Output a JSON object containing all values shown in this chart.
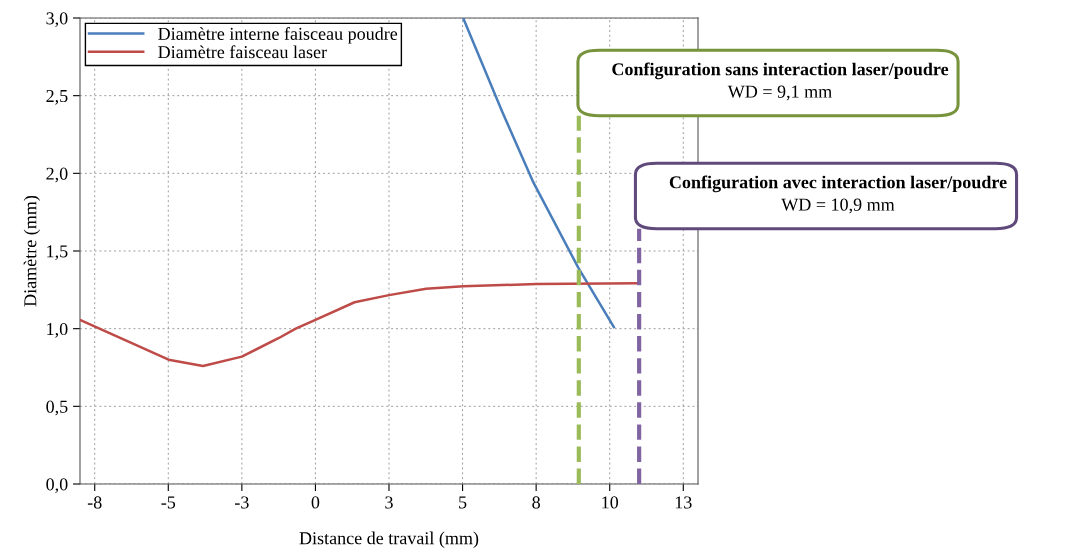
{
  "chart_data": {
    "type": "line",
    "xlabel": "Distance de travail (mm)",
    "ylabel": "Diamètre (mm)",
    "xlim": [
      -8,
      13
    ],
    "ylim": [
      0,
      3
    ],
    "xticks": [
      {
        "value": -7.5,
        "label": "-8"
      },
      {
        "value": -5,
        "label": "-5"
      },
      {
        "value": -2.5,
        "label": "-3"
      },
      {
        "value": 0,
        "label": "0"
      },
      {
        "value": 2.5,
        "label": "3"
      },
      {
        "value": 5,
        "label": "5"
      },
      {
        "value": 7.5,
        "label": "8"
      },
      {
        "value": 10,
        "label": "10"
      },
      {
        "value": 12.5,
        "label": "13"
      }
    ],
    "yticks": [
      {
        "value": 0,
        "label": "0,0"
      },
      {
        "value": 0.5,
        "label": "0,5"
      },
      {
        "value": 1,
        "label": "1,0"
      },
      {
        "value": 1.5,
        "label": "1,5"
      },
      {
        "value": 2,
        "label": "2,0"
      },
      {
        "value": 2.5,
        "label": "2,5"
      },
      {
        "value": 3,
        "label": "3,0"
      }
    ],
    "grid": true,
    "legend": "top left",
    "marker": "none",
    "line_style": "solid",
    "series": [
      {
        "name": "Diamètre interne faisceau poudre",
        "color": "#4a7ebb",
        "x": [
          5.02,
          6.34,
          7.41,
          8.94,
          10.14
        ],
        "values": [
          3.0,
          2.4,
          1.94,
          1.39,
          1.01
        ]
      },
      {
        "name": "Diamètre faisceau laser",
        "color": "#be4b48",
        "x": [
          -8,
          -6.39,
          -4.99,
          -3.82,
          -2.5,
          -1.24,
          -0.67,
          0,
          1.33,
          2.5,
          3.76,
          5.02,
          7.51,
          11.0
        ],
        "values": [
          1.057,
          0.92,
          0.8,
          0.76,
          0.82,
          0.94,
          1.0,
          1.057,
          1.17,
          1.216,
          1.257,
          1.273,
          1.287,
          1.292
        ]
      }
    ],
    "ref_lines": [
      {
        "axis": "x",
        "value": 8.95,
        "color": "#9bbb59",
        "line_style": "dashed"
      },
      {
        "axis": "x",
        "value": 11.0,
        "color": "#8064a2",
        "line_style": "dashed"
      }
    ],
    "annotations": [
      "Configuration sans interaction laser/poudre\nWD = 9,1 mm",
      "Configuration avec interaction laser/poudre\nWD = 10,9 mm"
    ]
  }
}
